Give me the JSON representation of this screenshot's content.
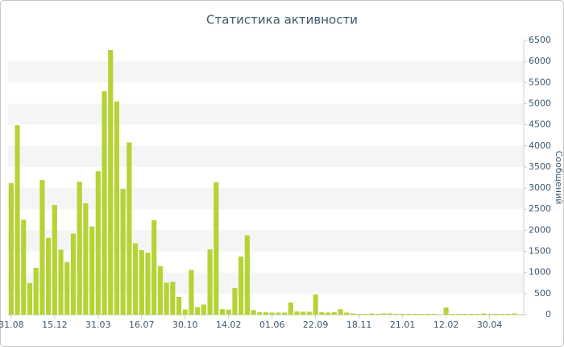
{
  "chart_data": {
    "type": "bar",
    "title": "Статистика активности",
    "y_label": "Сообщений",
    "categories": [
      "31.08",
      null,
      null,
      null,
      null,
      null,
      null,
      "15.12",
      null,
      null,
      null,
      null,
      null,
      null,
      "31.03",
      null,
      null,
      null,
      null,
      null,
      null,
      "16.07",
      null,
      null,
      null,
      null,
      null,
      null,
      "30.10",
      null,
      null,
      null,
      null,
      null,
      null,
      "14.02",
      null,
      null,
      null,
      null,
      null,
      null,
      "01.06",
      null,
      null,
      null,
      null,
      null,
      null,
      "22.09",
      null,
      null,
      null,
      null,
      null,
      null,
      "18.11",
      null,
      null,
      null,
      null,
      null,
      null,
      "21.01",
      null,
      null,
      null,
      null,
      null,
      null,
      "12.02",
      null,
      null,
      null,
      null,
      null,
      null,
      "30.04",
      null,
      null,
      null,
      null,
      null
    ],
    "values": [
      3120,
      4490,
      2250,
      750,
      1110,
      3190,
      1820,
      2600,
      1540,
      1250,
      1920,
      3150,
      2640,
      2090,
      3400,
      5290,
      6270,
      5050,
      2980,
      4080,
      1690,
      1530,
      1470,
      2240,
      1150,
      760,
      780,
      420,
      120,
      1060,
      180,
      240,
      1550,
      3140,
      130,
      120,
      630,
      1380,
      1880,
      110,
      60,
      60,
      50,
      50,
      50,
      290,
      80,
      70,
      70,
      480,
      60,
      50,
      60,
      130,
      50,
      30,
      20,
      20,
      30,
      20,
      30,
      30,
      20,
      20,
      20,
      20,
      20,
      20,
      20,
      10,
      170,
      20,
      20,
      20,
      20,
      20,
      30,
      20,
      20,
      20,
      20,
      30,
      10
    ],
    "color": "#b5d334",
    "ylim": [
      0,
      6500
    ],
    "yticks": [
      0,
      500,
      1000,
      1500,
      2000,
      2500,
      3000,
      3500,
      4000,
      4500,
      5000,
      5500,
      6000,
      6500
    ],
    "alternate_bands": true
  }
}
